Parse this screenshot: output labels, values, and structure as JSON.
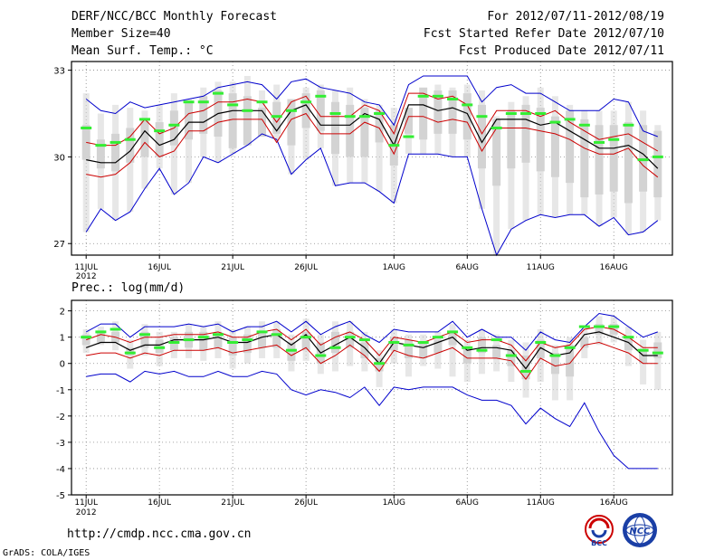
{
  "header": {
    "title": "DERF/NCC/BCC Monthly Forecast",
    "member_size": "Member Size=40",
    "variable": "Mean Surf. Temp.: °C",
    "forecast_range": "For 2012/07/11-2012/08/19",
    "started_refer": "Fcst Started Refer Date 2012/07/10",
    "produced": "Fcst Produced Date 2012/07/11"
  },
  "footer": {
    "url": "http://cmdp.ncc.cma.gov.cn",
    "credit": "GrADS: COLA/IGES",
    "logo_bcc": "BCC",
    "logo_ncc": "NCC"
  },
  "colors": {
    "envelope": "#0000cc",
    "spread": "#cc0000",
    "mean": "#000000",
    "median": "#33ee33",
    "box": "#d3d3d3"
  },
  "chart_data": [
    {
      "type": "box-ensemble",
      "title": "Mean Surf. Temp.: °C",
      "xlabel": "",
      "ylabel": "",
      "ylim": [
        26.6,
        33.3
      ],
      "yticks": [
        27,
        30,
        33
      ],
      "x_tick_labels": [
        "11JUL",
        "16JUL",
        "21JUL",
        "26JUL",
        "1AUG",
        "6AUG",
        "11AUG",
        "16AUG"
      ],
      "x_tick_days": [
        0,
        5,
        10,
        15,
        21,
        26,
        31,
        36
      ],
      "year_label": "2012",
      "days": 40,
      "max": [
        32.2,
        31.5,
        31.8,
        31.7,
        31.6,
        31.8,
        32.2,
        32.0,
        32.4,
        32.6,
        32.6,
        32.8,
        32.3,
        32.5,
        31.9,
        32.4,
        32.5,
        32.3,
        32.4,
        32.0,
        31.8,
        31.7,
        31.1,
        32.2,
        32.5,
        32.4,
        32.5,
        32.3,
        31.4,
        31.9,
        32.1,
        32.4,
        32.1,
        31.8,
        31.6,
        31.6,
        31.6,
        31.9,
        31.6,
        31.1
      ],
      "min": [
        27.4,
        28.2,
        27.8,
        28.1,
        28.9,
        29.6,
        28.7,
        29.1,
        30.0,
        29.8,
        30.1,
        30.4,
        30.8,
        30.6,
        29.4,
        29.9,
        30.3,
        29.0,
        29.1,
        29.1,
        28.8,
        28.4,
        30.1,
        30.1,
        30.1,
        30.0,
        30.0,
        28.2,
        26.3,
        27.5,
        27.8,
        28.0,
        27.9,
        28.0,
        28.0,
        27.6,
        27.9,
        27.3,
        27.4,
        27.8
      ],
      "q3": [
        31.1,
        30.6,
        30.8,
        31.0,
        31.3,
        31.2,
        31.6,
        31.9,
        32.1,
        32.3,
        32.2,
        32.1,
        31.7,
        31.9,
        32.0,
        32.2,
        32.3,
        31.9,
        31.8,
        31.7,
        31.6,
        31.1,
        31.7,
        32.4,
        32.3,
        32.3,
        32.2,
        31.8,
        31.3,
        31.6,
        31.8,
        31.7,
        31.4,
        31.6,
        31.3,
        31.1,
        31.1,
        31.2,
        31.1,
        30.9
      ],
      "q1": [
        29.9,
        29.6,
        29.5,
        29.8,
        30.0,
        30.0,
        30.4,
        30.6,
        30.8,
        30.7,
        30.3,
        30.4,
        30.7,
        30.8,
        30.4,
        31.0,
        30.9,
        30.1,
        30.0,
        30.0,
        30.5,
        29.7,
        30.8,
        30.6,
        30.8,
        30.8,
        30.6,
        29.6,
        29.0,
        29.6,
        29.8,
        29.5,
        29.3,
        29.1,
        28.6,
        28.7,
        28.8,
        28.4,
        28.8,
        28.6
      ],
      "median": [
        31.0,
        30.4,
        30.5,
        30.6,
        31.3,
        30.9,
        31.1,
        31.9,
        31.9,
        32.2,
        31.8,
        31.6,
        31.9,
        31.4,
        31.6,
        31.9,
        32.1,
        31.5,
        31.4,
        31.4,
        31.5,
        30.4,
        30.7,
        32.1,
        32.1,
        32.0,
        31.8,
        31.4,
        31.0,
        31.5,
        31.5,
        31.5,
        31.2,
        31.3,
        31.1,
        30.5,
        30.6,
        31.1,
        29.9,
        30.0
      ],
      "mean": [
        29.9,
        29.8,
        29.8,
        30.2,
        30.9,
        30.4,
        30.6,
        31.2,
        31.2,
        31.5,
        31.6,
        31.6,
        31.6,
        30.9,
        31.6,
        31.8,
        31.1,
        31.1,
        31.1,
        31.5,
        31.3,
        30.4,
        31.8,
        31.8,
        31.6,
        31.7,
        31.5,
        30.5,
        31.3,
        31.3,
        31.3,
        31.1,
        31.2,
        30.9,
        30.6,
        30.3,
        30.3,
        30.4,
        30.1,
        29.6
      ],
      "upper": [
        30.5,
        30.4,
        30.4,
        30.7,
        31.3,
        30.8,
        31.0,
        31.5,
        31.6,
        31.9,
        31.9,
        32.0,
        31.9,
        31.2,
        31.9,
        32.1,
        31.4,
        31.4,
        31.4,
        31.8,
        31.6,
        30.8,
        32.2,
        32.2,
        32.0,
        32.1,
        31.8,
        30.8,
        31.6,
        31.6,
        31.6,
        31.4,
        31.6,
        31.2,
        30.9,
        30.6,
        30.7,
        30.8,
        30.5,
        30.2
      ],
      "lower": [
        29.4,
        29.3,
        29.4,
        29.8,
        30.5,
        30.0,
        30.2,
        30.9,
        30.9,
        31.2,
        31.3,
        31.3,
        31.3,
        30.5,
        31.3,
        31.5,
        30.8,
        30.8,
        30.8,
        31.2,
        31.0,
        30.1,
        31.4,
        31.4,
        31.2,
        31.3,
        31.2,
        30.2,
        31.0,
        31.0,
        31.0,
        30.9,
        30.8,
        30.6,
        30.3,
        30.1,
        30.1,
        30.3,
        29.7,
        29.3
      ],
      "env_upper": [
        32.0,
        31.6,
        31.5,
        31.9,
        31.7,
        31.8,
        31.9,
        32.0,
        32.1,
        32.4,
        32.5,
        32.6,
        32.5,
        32.0,
        32.6,
        32.7,
        32.4,
        32.3,
        32.2,
        31.9,
        31.8,
        31.1,
        32.5,
        32.8,
        32.8,
        32.8,
        32.8,
        31.9,
        32.4,
        32.5,
        32.2,
        32.2,
        31.9,
        31.6,
        31.6,
        31.6,
        32.0,
        31.9,
        30.9,
        30.7
      ],
      "env_lower": [
        27.4,
        28.2,
        27.8,
        28.1,
        28.9,
        29.6,
        28.7,
        29.1,
        30.0,
        29.8,
        30.1,
        30.4,
        30.8,
        30.6,
        29.4,
        29.9,
        30.3,
        29.0,
        29.1,
        29.1,
        28.8,
        28.4,
        30.1,
        30.1,
        30.1,
        30.0,
        30.0,
        28.2,
        26.3,
        27.5,
        27.8,
        28.0,
        27.9,
        28.0,
        28.0,
        27.6,
        27.9,
        27.3,
        27.4,
        27.8
      ]
    },
    {
      "type": "box-ensemble",
      "title": "Prec.: log(mm/d)",
      "xlabel": "",
      "ylabel": "",
      "ylim": [
        -5,
        2.4
      ],
      "yticks": [
        -5,
        -4,
        -3,
        -2,
        -1,
        0,
        1,
        2
      ],
      "x_tick_labels": [
        "11JUL",
        "16JUL",
        "21JUL",
        "26JUL",
        "1AUG",
        "6AUG",
        "11AUG",
        "16AUG"
      ],
      "x_tick_days": [
        0,
        5,
        10,
        15,
        21,
        26,
        31,
        36
      ],
      "year_label": "2012",
      "days": 40,
      "max": [
        1.3,
        1.4,
        1.6,
        0.9,
        1.5,
        1.2,
        1.2,
        1.5,
        1.4,
        1.6,
        1.3,
        1.4,
        1.6,
        1.6,
        1.1,
        1.7,
        1.1,
        1.6,
        1.6,
        1.2,
        0.5,
        1.3,
        1.1,
        1.1,
        1.2,
        1.5,
        0.9,
        1.3,
        1.1,
        0.9,
        0.8,
        1.3,
        0.7,
        1.0,
        1.3,
        1.8,
        1.8,
        1.4,
        0.9,
        1.2
      ],
      "min": [
        0.4,
        0.7,
        0.5,
        -0.2,
        0.3,
        -0.1,
        0.2,
        0.2,
        0.1,
        0.2,
        -0.2,
        0.0,
        0.2,
        0.2,
        -0.3,
        0.1,
        -0.4,
        -0.3,
        -0.1,
        -0.3,
        -0.9,
        0.0,
        -0.5,
        -0.1,
        -0.2,
        -0.5,
        -0.7,
        -0.4,
        -0.3,
        -0.7,
        -1.3,
        -0.7,
        -1.4,
        -1.4,
        0.2,
        0.7,
        0.8,
        -0.1,
        -0.8,
        -1.0
      ],
      "q3": [
        1.1,
        1.2,
        1.2,
        0.6,
        1.2,
        0.9,
        1.0,
        1.2,
        1.2,
        1.2,
        1.0,
        1.1,
        1.2,
        1.3,
        0.8,
        1.2,
        0.8,
        1.2,
        1.2,
        0.8,
        0.2,
        1.0,
        0.9,
        0.8,
        0.9,
        1.2,
        0.6,
        1.0,
        0.7,
        0.5,
        0.3,
        0.9,
        0.4,
        0.7,
        1.0,
        1.5,
        1.5,
        1.0,
        0.5,
        0.8
      ],
      "q1": [
        0.7,
        0.8,
        0.8,
        0.3,
        0.6,
        0.4,
        0.5,
        0.6,
        0.5,
        0.6,
        0.3,
        0.4,
        0.6,
        0.6,
        0.1,
        0.5,
        0.0,
        0.4,
        0.6,
        0.2,
        -0.3,
        0.5,
        0.2,
        0.2,
        0.4,
        0.7,
        0.0,
        0.4,
        0.2,
        -0.1,
        -0.6,
        0.2,
        -0.4,
        -0.5,
        0.6,
        1.1,
        1.1,
        0.5,
        0.0,
        0.2
      ],
      "median": [
        1.0,
        1.2,
        1.3,
        0.4,
        1.1,
        0.6,
        0.8,
        0.9,
        1.0,
        1.1,
        0.8,
        0.9,
        1.2,
        1.1,
        0.5,
        1.0,
        0.3,
        0.6,
        1.0,
        0.9,
        0.0,
        0.8,
        0.7,
        0.8,
        1.0,
        1.2,
        0.6,
        0.5,
        0.9,
        0.3,
        -0.3,
        0.8,
        0.3,
        0.6,
        1.4,
        1.4,
        1.4,
        1.0,
        0.5,
        0.4
      ],
      "mean": [
        0.6,
        0.8,
        0.8,
        0.5,
        0.7,
        0.7,
        0.9,
        0.9,
        0.9,
        1.0,
        0.8,
        0.8,
        1.0,
        1.1,
        0.7,
        1.1,
        0.4,
        0.7,
        1.0,
        0.6,
        0.0,
        0.8,
        0.7,
        0.6,
        0.8,
        1.0,
        0.5,
        0.6,
        0.6,
        0.5,
        -0.2,
        0.6,
        0.3,
        0.4,
        1.1,
        1.2,
        1.0,
        0.8,
        0.3,
        0.3
      ],
      "upper": [
        0.9,
        1.1,
        1.0,
        0.8,
        1.0,
        1.0,
        1.1,
        1.1,
        1.1,
        1.2,
        1.0,
        1.0,
        1.2,
        1.3,
        0.9,
        1.3,
        0.7,
        1.0,
        1.2,
        0.9,
        0.3,
        1.0,
        0.9,
        0.8,
        1.0,
        1.2,
        0.8,
        0.9,
        0.9,
        0.7,
        0.1,
        0.8,
        0.6,
        0.7,
        1.3,
        1.4,
        1.3,
        1.0,
        0.6,
        0.6
      ],
      "lower": [
        0.3,
        0.4,
        0.4,
        0.2,
        0.4,
        0.3,
        0.5,
        0.5,
        0.5,
        0.6,
        0.4,
        0.5,
        0.6,
        0.7,
        0.3,
        0.6,
        0.0,
        0.3,
        0.7,
        0.3,
        -0.3,
        0.5,
        0.3,
        0.2,
        0.4,
        0.6,
        0.2,
        0.2,
        0.2,
        0.1,
        -0.6,
        0.2,
        -0.1,
        0.0,
        0.7,
        0.8,
        0.6,
        0.4,
        0.0,
        0.0
      ],
      "env_upper": [
        1.2,
        1.5,
        1.5,
        1.0,
        1.4,
        1.4,
        1.4,
        1.5,
        1.4,
        1.5,
        1.2,
        1.4,
        1.4,
        1.6,
        1.2,
        1.6,
        1.1,
        1.4,
        1.6,
        1.1,
        0.8,
        1.3,
        1.2,
        1.2,
        1.2,
        1.6,
        1.0,
        1.3,
        1.0,
        1.0,
        0.5,
        1.2,
        0.9,
        0.8,
        1.4,
        1.9,
        1.8,
        1.4,
        1.0,
        1.2
      ],
      "env_lower": [
        -0.5,
        -0.4,
        -0.4,
        -0.7,
        -0.3,
        -0.4,
        -0.3,
        -0.5,
        -0.5,
        -0.3,
        -0.5,
        -0.5,
        -0.3,
        -0.4,
        -1.0,
        -1.2,
        -1.0,
        -1.1,
        -1.3,
        -0.9,
        -1.6,
        -0.9,
        -1.0,
        -0.9,
        -0.9,
        -0.9,
        -1.2,
        -1.4,
        -1.4,
        -1.6,
        -2.3,
        -1.7,
        -2.1,
        -2.4,
        -1.5,
        -2.6,
        -3.5,
        -4.0,
        -4.0,
        -4.0
      ]
    }
  ]
}
